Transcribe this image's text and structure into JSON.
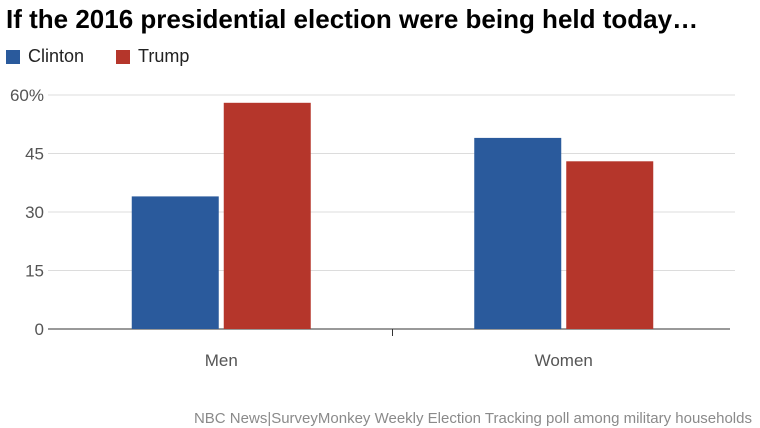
{
  "chart_data": {
    "type": "bar",
    "title": "If the 2016 presidential election were being held today…",
    "categories": [
      "Men",
      "Women"
    ],
    "series": [
      {
        "name": "Clinton",
        "values": [
          34,
          49
        ],
        "color": "#2a5a9c"
      },
      {
        "name": "Trump",
        "values": [
          58,
          43
        ],
        "color": "#b5362b"
      }
    ],
    "yticks": [
      "0",
      "15",
      "30",
      "45",
      "60%"
    ],
    "ytick_values": [
      0,
      15,
      30,
      45,
      60
    ],
    "ylim": [
      0,
      60
    ],
    "xlabel": "",
    "ylabel": "",
    "grid": true,
    "legend": "top-left"
  },
  "source": "NBC News|SurveyMonkey Weekly Election Tracking poll among military households"
}
